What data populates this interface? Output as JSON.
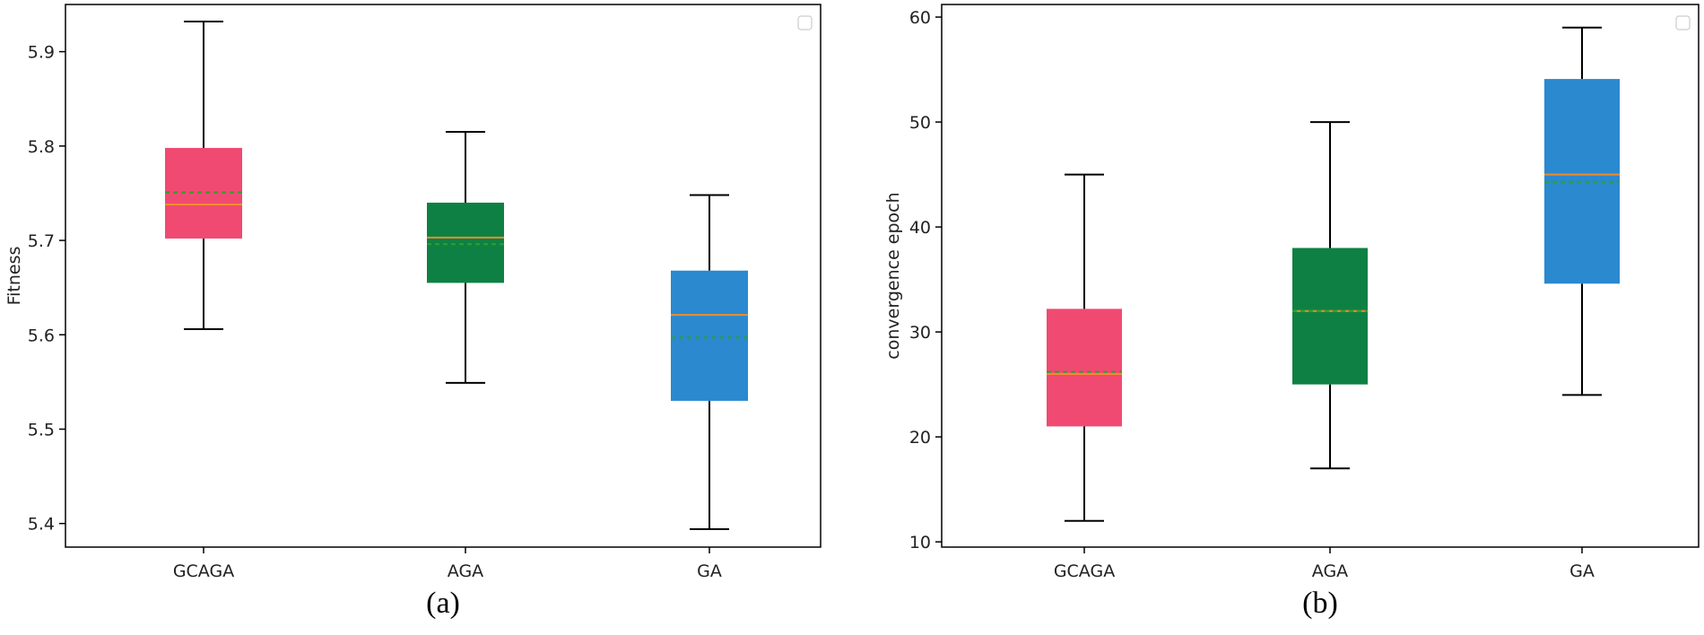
{
  "colors": {
    "box": [
      "#F04A72",
      "#0E8043",
      "#2A89CF"
    ],
    "median": "#F28C28",
    "mean": "#2CA02C",
    "whisker": "#000000",
    "frame": "#000000"
  },
  "chart_data": [
    {
      "type": "box",
      "caption": "(a)",
      "xlabel": "",
      "ylabel": "Fitness",
      "ylim": [
        5.375,
        5.95
      ],
      "yticks": [
        5.4,
        5.5,
        5.6,
        5.7,
        5.8,
        5.9
      ],
      "ytick_labels": [
        "5.4",
        "5.5",
        "5.6",
        "5.7",
        "5.8",
        "5.9"
      ],
      "categories": [
        "GCAGA",
        "AGA",
        "GA"
      ],
      "boxes": [
        {
          "name": "GCAGA",
          "min": 5.606,
          "q1": 5.702,
          "median": 5.738,
          "mean": 5.751,
          "q3": 5.798,
          "max": 5.932
        },
        {
          "name": "AGA",
          "min": 5.549,
          "q1": 5.655,
          "median": 5.703,
          "mean": 5.696,
          "q3": 5.74,
          "max": 5.815
        },
        {
          "name": "GA",
          "min": 5.394,
          "q1": 5.53,
          "median": 5.621,
          "mean": 5.597,
          "q3": 5.668,
          "max": 5.748
        }
      ],
      "legend": "top-right (empty)"
    },
    {
      "type": "box",
      "caption": "(b)",
      "xlabel": "",
      "ylabel": "convergence epoch",
      "ylim": [
        9.5,
        61.2
      ],
      "yticks": [
        10,
        20,
        30,
        40,
        50,
        60
      ],
      "ytick_labels": [
        "10",
        "20",
        "30",
        "40",
        "50",
        "60"
      ],
      "categories": [
        "GCAGA",
        "AGA",
        "GA"
      ],
      "boxes": [
        {
          "name": "GCAGA",
          "min": 12,
          "q1": 21,
          "median": 26,
          "mean": 26.2,
          "q3": 32.2,
          "max": 45
        },
        {
          "name": "AGA",
          "min": 17,
          "q1": 25,
          "median": 32,
          "mean": 32,
          "q3": 38,
          "max": 50
        },
        {
          "name": "GA",
          "min": 24,
          "q1": 34.6,
          "median": 45,
          "mean": 44.3,
          "q3": 54.1,
          "max": 59
        }
      ],
      "legend": "top-right (empty)"
    }
  ]
}
